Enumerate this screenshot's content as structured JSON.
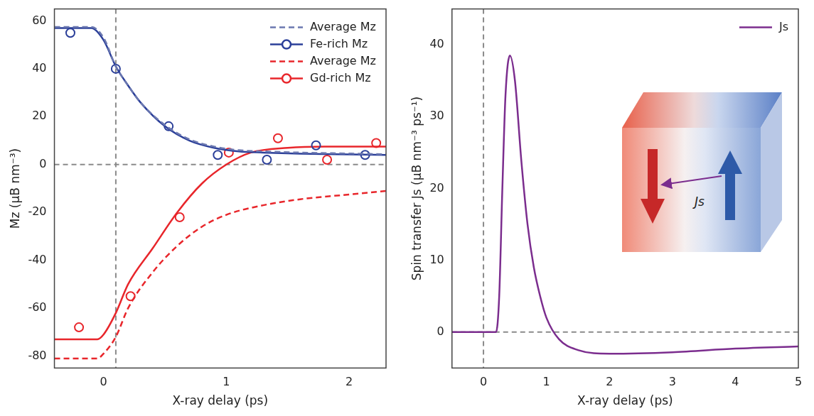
{
  "chart_data": [
    {
      "type": "line",
      "x_label": "X-ray delay (ps)",
      "y_label": "Mz (μB nm⁻³)",
      "xlim": [
        -0.4,
        2.3
      ],
      "xticks": [
        0,
        1,
        2
      ],
      "ylim": [
        -85,
        65
      ],
      "yticks": [
        -80,
        -60,
        -40,
        -20,
        0,
        20,
        40,
        60
      ],
      "grid": false,
      "legend": "upper right",
      "reference_lines": {
        "x": [
          0.1
        ],
        "y": [
          0
        ]
      },
      "series": [
        {
          "name": "Average Mz",
          "color": "#6b78b0",
          "line_style": "dashed",
          "x": [
            -0.4,
            -0.1,
            0,
            0.1,
            0.2,
            0.3,
            0.5,
            0.7,
            0.9,
            1.1,
            1.3,
            1.6,
            2.0,
            2.3
          ],
          "values": [
            57.5,
            57.5,
            53,
            41,
            33,
            26,
            16.5,
            10.5,
            7.5,
            6,
            5.5,
            5,
            4.6,
            4.3
          ]
        },
        {
          "name": "Fe-rich Mz",
          "color": "#2b3f99",
          "line_style": "solid",
          "marker": "circle",
          "x": [
            -0.4,
            -0.1,
            0,
            0.1,
            0.2,
            0.3,
            0.5,
            0.7,
            0.9,
            1.1,
            1.3,
            1.6,
            2.0,
            2.3
          ],
          "values": [
            57,
            57,
            52,
            41,
            33,
            26,
            16,
            10,
            7,
            5.5,
            5,
            4.5,
            4.2,
            4
          ],
          "points": {
            "x": [
              -0.27,
              0.1,
              0.53,
              0.93,
              1.33,
              1.73,
              2.13
            ],
            "y": [
              55,
              40,
              16,
              4,
              2,
              8,
              4
            ]
          }
        },
        {
          "name": "Average Mz",
          "color": "#e8262b",
          "line_style": "dashed",
          "x": [
            -0.4,
            -0.05,
            0,
            0.1,
            0.2,
            0.4,
            0.6,
            0.8,
            1.0,
            1.3,
            1.6,
            2.0,
            2.3
          ],
          "values": [
            -81,
            -81,
            -79,
            -72,
            -60,
            -45,
            -34,
            -26,
            -21,
            -17,
            -14.5,
            -12.5,
            -11
          ]
        },
        {
          "name": "Gd-rich Mz",
          "color": "#e8262b",
          "line_style": "solid",
          "marker": "circle",
          "x": [
            -0.4,
            -0.05,
            0,
            0.1,
            0.2,
            0.4,
            0.6,
            0.8,
            1.0,
            1.2,
            1.5,
            1.8,
            2.3
          ],
          "values": [
            -73,
            -73,
            -71,
            -62,
            -50,
            -35,
            -20,
            -8,
            0,
            5,
            7,
            7.5,
            7.5
          ],
          "points": {
            "x": [
              -0.2,
              0.22,
              0.62,
              1.02,
              1.42,
              1.82,
              2.22
            ],
            "y": [
              -68,
              -55,
              -22,
              5,
              11,
              2,
              9
            ]
          }
        }
      ]
    },
    {
      "type": "line",
      "x_label": "X-ray delay (ps)",
      "y_label": "Spin transfer Js (μB nm⁻³ ps⁻¹)",
      "xlim": [
        -0.5,
        5
      ],
      "xticks": [
        0,
        1,
        2,
        3,
        4,
        5
      ],
      "ylim": [
        -5,
        45
      ],
      "yticks": [
        0,
        10,
        20,
        30,
        40
      ],
      "grid": false,
      "legend": "upper right",
      "reference_lines": {
        "x": [
          0
        ],
        "y": [
          0
        ]
      },
      "inset": {
        "label": "Js"
      },
      "series": [
        {
          "name": "Js",
          "color": "#7b2d8e",
          "line_style": "solid",
          "x": [
            -0.5,
            0.2,
            0.25,
            0.3,
            0.35,
            0.42,
            0.5,
            0.6,
            0.7,
            0.8,
            0.9,
            1.0,
            1.2,
            1.5,
            2,
            3,
            4,
            5
          ],
          "values": [
            0,
            0,
            5,
            20,
            33,
            38.5,
            35,
            24,
            15,
            9,
            5,
            2,
            -1,
            -2.5,
            -3,
            -2.8,
            -2.3,
            -2
          ]
        }
      ]
    }
  ]
}
